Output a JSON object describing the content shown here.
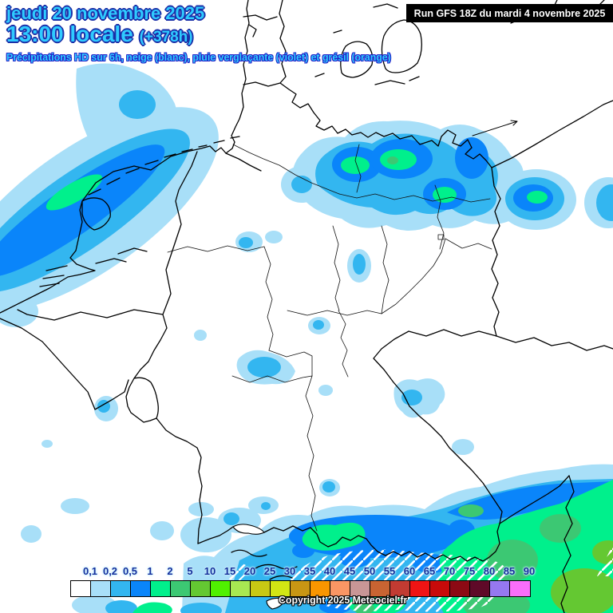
{
  "header": {
    "date": "jeudi 20 novembre 2025",
    "time": "13:00 locale",
    "run_offset": "(+378h)",
    "subtitle": "Précipitations HD sur 6h, neige (blanc), pluie verglaçante (violet) et grésil (orange)"
  },
  "run_info": {
    "text": "Run GFS 18Z du mardi 4 novembre 2025"
  },
  "copyright": {
    "text": "Copyright 2025 Meteociel.fr"
  },
  "legend": {
    "labels": [
      "0,1",
      "0,2",
      "0,5",
      "1",
      "2",
      "5",
      "10",
      "15",
      "20",
      "25",
      "30",
      "35",
      "40",
      "45",
      "50",
      "55",
      "60",
      "65",
      "70",
      "75",
      "80",
      "85",
      "90"
    ],
    "cell_colors": [
      "#FFFFFF",
      "#A8DFF8",
      "#33B6F0",
      "#0A85FA",
      "#00F08C",
      "#3CC873",
      "#64C832",
      "#50F000",
      "#A8E852",
      "#C8C814",
      "#D2E614",
      "#C89614",
      "#FA9600",
      "#FA9664",
      "#C89696",
      "#C86432",
      "#C23B32",
      "#F01414",
      "#C80A0A",
      "#8C0A14",
      "#5F0A28",
      "#9678F0",
      "#FA6EFA"
    ]
  },
  "colors": {
    "header_text": "#2FCBFF",
    "header_outline": "#1B2FA8",
    "legend_label_text": "#16309C",
    "run_box_bg": "#000000",
    "run_box_text": "#FFFFFF",
    "precip_light": "#A8DFF8",
    "precip_medium": "#33B6F0",
    "precip_bright": "#0A85FA",
    "precip_green": "#00F08C",
    "precip_green_mid": "#3CC873",
    "precip_green_dark": "#64C832"
  }
}
